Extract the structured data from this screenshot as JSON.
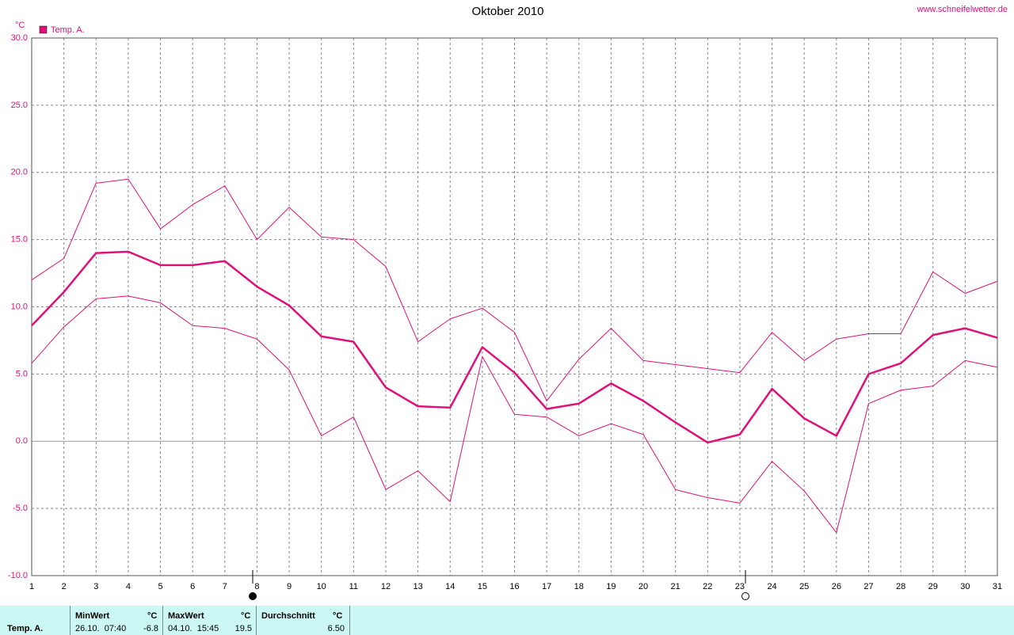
{
  "chart_data": {
    "type": "line",
    "title": "Oktober 2010",
    "source": "www.schneifelwetter.de",
    "y_unit": "°C",
    "x": [
      1,
      2,
      3,
      4,
      5,
      6,
      7,
      8,
      9,
      10,
      11,
      12,
      13,
      14,
      15,
      16,
      17,
      18,
      19,
      20,
      21,
      22,
      23,
      24,
      25,
      26,
      27,
      28,
      29,
      30,
      31
    ],
    "series": [
      {
        "color": "#e0107a",
        "linewidth": 1,
        "values": [
          12.0,
          13.6,
          19.2,
          19.5,
          15.8,
          17.6,
          19.0,
          15.0,
          17.4,
          15.2,
          15.0,
          13.0,
          7.4,
          9.1,
          9.9,
          8.1,
          3.0,
          6.1,
          8.4,
          6.0,
          5.7,
          5.4,
          5.1,
          8.1,
          6.0,
          7.6,
          8.0,
          8.0,
          12.6,
          11.0,
          11.9
        ]
      },
      {
        "name": "Temp. A.",
        "color": "#e0107a",
        "linewidth": 2.5,
        "values": [
          8.6,
          11.1,
          14.0,
          14.1,
          13.1,
          13.1,
          13.4,
          11.5,
          10.1,
          7.8,
          7.4,
          4.0,
          2.6,
          2.5,
          7.0,
          5.1,
          2.4,
          2.8,
          4.3,
          3.0,
          1.4,
          -0.1,
          0.5,
          3.9,
          1.7,
          0.4,
          5.0,
          5.8,
          7.9,
          8.4,
          7.7
        ]
      },
      {
        "color": "#e0107a",
        "linewidth": 1,
        "values": [
          5.8,
          8.5,
          10.6,
          10.8,
          10.3,
          8.6,
          8.4,
          7.6,
          5.3,
          0.4,
          1.8,
          -3.6,
          -2.2,
          -4.5,
          6.3,
          2.0,
          1.8,
          0.4,
          1.3,
          0.5,
          -3.6,
          -4.2,
          -4.6,
          -1.5,
          -3.7,
          -6.8,
          2.8,
          3.8,
          4.1,
          6.0,
          5.5
        ]
      }
    ],
    "xlim": [
      1,
      31
    ],
    "xticks": [
      1,
      2,
      3,
      4,
      5,
      6,
      7,
      8,
      9,
      10,
      11,
      12,
      13,
      14,
      15,
      16,
      17,
      18,
      19,
      20,
      21,
      22,
      23,
      24,
      25,
      26,
      27,
      28,
      29,
      30,
      31
    ],
    "ylim": [
      -10,
      30
    ],
    "yticks": [
      {
        "value": -10,
        "label": "-10.0"
      },
      {
        "value": -5,
        "label": "-5.0"
      },
      {
        "value": 0,
        "label": "0.0"
      },
      {
        "value": 5,
        "label": "5.0"
      },
      {
        "value": 10,
        "label": "10.0"
      },
      {
        "value": 15,
        "label": "15.0"
      },
      {
        "value": 20,
        "label": "20.0"
      },
      {
        "value": 25,
        "label": "25.0"
      },
      {
        "value": 30,
        "label": "30.0"
      }
    ],
    "grid": true
  },
  "footer": {
    "row_label": "Temp. A.",
    "min": {
      "header": "MinWert",
      "unit": "°C",
      "date": "26.10.  07:40",
      "value": "-6.8"
    },
    "max": {
      "header": "MaxWert",
      "unit": "°C",
      "date": "04.10.  15:45",
      "value": "19.5"
    },
    "mean": {
      "header": "Durchschnitt",
      "unit": "°C",
      "value": "6.50"
    }
  }
}
